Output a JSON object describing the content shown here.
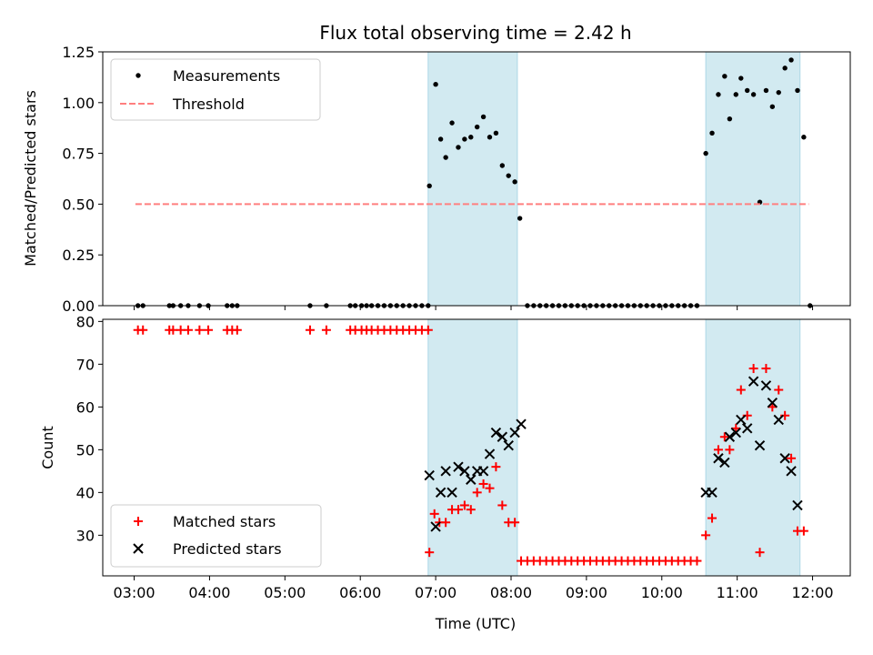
{
  "chart_data": [
    {
      "type": "scatter",
      "title": "Flux total observing time = 2.42 h",
      "xlabel": "",
      "ylabel": "Matched/Predicted stars",
      "xlim": [
        "02:35",
        "12:30"
      ],
      "ylim": [
        0,
        1.25
      ],
      "yticks": [
        "0.00",
        "0.25",
        "0.50",
        "0.75",
        "1.00",
        "1.25"
      ],
      "grid": false,
      "legend_position": "top-left",
      "shaded_intervals": [
        [
          "06:54",
          "08:05"
        ],
        [
          "10:35",
          "11:50"
        ]
      ],
      "shade_color": "#add8e6",
      "series": [
        {
          "name": "Measurements",
          "marker": "dot",
          "color": "#000000",
          "points": [
            [
              "03:03",
              0
            ],
            [
              "03:07",
              0
            ],
            [
              "03:28",
              0
            ],
            [
              "03:31",
              0
            ],
            [
              "03:37",
              0
            ],
            [
              "03:43",
              0
            ],
            [
              "03:52",
              0
            ],
            [
              "03:59",
              0
            ],
            [
              "04:14",
              0
            ],
            [
              "04:18",
              0
            ],
            [
              "04:22",
              0
            ],
            [
              "05:20",
              0
            ],
            [
              "05:33",
              0
            ],
            [
              "05:52",
              0
            ],
            [
              "05:56",
              0
            ],
            [
              "06:01",
              0
            ],
            [
              "06:05",
              0
            ],
            [
              "06:09",
              0
            ],
            [
              "06:14",
              0
            ],
            [
              "06:19",
              0
            ],
            [
              "06:24",
              0
            ],
            [
              "06:29",
              0
            ],
            [
              "06:34",
              0
            ],
            [
              "06:39",
              0
            ],
            [
              "06:44",
              0
            ],
            [
              "06:49",
              0
            ],
            [
              "06:54",
              0
            ],
            [
              "06:55",
              0.59
            ],
            [
              "07:00",
              1.09
            ],
            [
              "07:04",
              0.82
            ],
            [
              "07:08",
              0.73
            ],
            [
              "07:13",
              0.9
            ],
            [
              "07:18",
              0.78
            ],
            [
              "07:23",
              0.82
            ],
            [
              "07:28",
              0.83
            ],
            [
              "07:33",
              0.88
            ],
            [
              "07:38",
              0.93
            ],
            [
              "07:43",
              0.83
            ],
            [
              "07:48",
              0.85
            ],
            [
              "07:53",
              0.69
            ],
            [
              "07:58",
              0.64
            ],
            [
              "08:03",
              0.61
            ],
            [
              "08:07",
              0.43
            ],
            [
              "08:13",
              0
            ],
            [
              "08:18",
              0
            ],
            [
              "08:23",
              0
            ],
            [
              "08:28",
              0
            ],
            [
              "08:33",
              0
            ],
            [
              "08:38",
              0
            ],
            [
              "08:43",
              0
            ],
            [
              "08:48",
              0
            ],
            [
              "08:53",
              0
            ],
            [
              "08:58",
              0
            ],
            [
              "09:03",
              0
            ],
            [
              "09:08",
              0
            ],
            [
              "09:13",
              0
            ],
            [
              "09:18",
              0
            ],
            [
              "09:23",
              0
            ],
            [
              "09:28",
              0
            ],
            [
              "09:33",
              0
            ],
            [
              "09:38",
              0
            ],
            [
              "09:43",
              0
            ],
            [
              "09:48",
              0
            ],
            [
              "09:53",
              0
            ],
            [
              "09:58",
              0
            ],
            [
              "10:03",
              0
            ],
            [
              "10:08",
              0
            ],
            [
              "10:13",
              0
            ],
            [
              "10:18",
              0
            ],
            [
              "10:23",
              0
            ],
            [
              "10:28",
              0
            ],
            [
              "10:35",
              0.75
            ],
            [
              "10:40",
              0.85
            ],
            [
              "10:45",
              1.04
            ],
            [
              "10:50",
              1.13
            ],
            [
              "10:54",
              0.92
            ],
            [
              "10:59",
              1.04
            ],
            [
              "11:03",
              1.12
            ],
            [
              "11:08",
              1.06
            ],
            [
              "11:13",
              1.04
            ],
            [
              "11:18",
              0.51
            ],
            [
              "11:23",
              1.06
            ],
            [
              "11:28",
              0.98
            ],
            [
              "11:33",
              1.05
            ],
            [
              "11:38",
              1.17
            ],
            [
              "11:43",
              1.21
            ],
            [
              "11:48",
              1.06
            ],
            [
              "11:53",
              0.83
            ],
            [
              "11:58",
              0
            ]
          ]
        },
        {
          "name": "Threshold",
          "marker": "dashed-line",
          "color": "#ff7f7f",
          "points": [
            [
              "03:01",
              0.5
            ],
            [
              "11:57",
              0.5
            ]
          ]
        }
      ]
    },
    {
      "type": "scatter",
      "title": "",
      "xlabel": "Time (UTC)",
      "ylabel": "Count",
      "xlim": [
        "02:35",
        "12:30"
      ],
      "ylim": [
        20.5,
        80.5
      ],
      "yticks": [
        "30",
        "40",
        "50",
        "60",
        "70",
        "80"
      ],
      "xticks": [
        "03:00",
        "04:00",
        "05:00",
        "06:00",
        "07:00",
        "08:00",
        "09:00",
        "10:00",
        "11:00",
        "12:00"
      ],
      "grid": false,
      "legend_position": "bottom-left",
      "shaded_intervals": [
        [
          "06:54",
          "08:05"
        ],
        [
          "10:35",
          "11:50"
        ]
      ],
      "shade_color": "#add8e6",
      "series": [
        {
          "name": "Matched stars",
          "marker": "plus",
          "color": "#ff0000",
          "points": [
            [
              "03:03",
              78
            ],
            [
              "03:07",
              78
            ],
            [
              "03:28",
              78
            ],
            [
              "03:31",
              78
            ],
            [
              "03:37",
              78
            ],
            [
              "03:43",
              78
            ],
            [
              "03:52",
              78
            ],
            [
              "03:59",
              78
            ],
            [
              "04:14",
              78
            ],
            [
              "04:18",
              78
            ],
            [
              "04:22",
              78
            ],
            [
              "05:20",
              78
            ],
            [
              "05:33",
              78
            ],
            [
              "05:52",
              78
            ],
            [
              "05:56",
              78
            ],
            [
              "06:01",
              78
            ],
            [
              "06:05",
              78
            ],
            [
              "06:09",
              78
            ],
            [
              "06:14",
              78
            ],
            [
              "06:19",
              78
            ],
            [
              "06:24",
              78
            ],
            [
              "06:29",
              78
            ],
            [
              "06:34",
              78
            ],
            [
              "06:39",
              78
            ],
            [
              "06:44",
              78
            ],
            [
              "06:49",
              78
            ],
            [
              "06:54",
              78
            ],
            [
              "06:55",
              26
            ],
            [
              "06:59",
              35
            ],
            [
              "07:03",
              33
            ],
            [
              "07:08",
              33
            ],
            [
              "07:13",
              36
            ],
            [
              "07:18",
              36
            ],
            [
              "07:23",
              37
            ],
            [
              "07:28",
              36
            ],
            [
              "07:33",
              40
            ],
            [
              "07:38",
              42
            ],
            [
              "07:43",
              41
            ],
            [
              "07:48",
              46
            ],
            [
              "07:53",
              37
            ],
            [
              "07:58",
              33
            ],
            [
              "08:03",
              33
            ],
            [
              "08:08",
              24
            ],
            [
              "08:13",
              24
            ],
            [
              "08:18",
              24
            ],
            [
              "08:23",
              24
            ],
            [
              "08:28",
              24
            ],
            [
              "08:33",
              24
            ],
            [
              "08:38",
              24
            ],
            [
              "08:43",
              24
            ],
            [
              "08:48",
              24
            ],
            [
              "08:53",
              24
            ],
            [
              "08:58",
              24
            ],
            [
              "09:03",
              24
            ],
            [
              "09:08",
              24
            ],
            [
              "09:13",
              24
            ],
            [
              "09:18",
              24
            ],
            [
              "09:23",
              24
            ],
            [
              "09:28",
              24
            ],
            [
              "09:33",
              24
            ],
            [
              "09:38",
              24
            ],
            [
              "09:43",
              24
            ],
            [
              "09:48",
              24
            ],
            [
              "09:53",
              24
            ],
            [
              "09:58",
              24
            ],
            [
              "10:03",
              24
            ],
            [
              "10:08",
              24
            ],
            [
              "10:13",
              24
            ],
            [
              "10:18",
              24
            ],
            [
              "10:23",
              24
            ],
            [
              "10:28",
              24
            ],
            [
              "10:35",
              30
            ],
            [
              "10:40",
              34
            ],
            [
              "10:45",
              50
            ],
            [
              "10:50",
              53
            ],
            [
              "10:54",
              50
            ],
            [
              "10:59",
              55
            ],
            [
              "11:03",
              64
            ],
            [
              "11:08",
              58
            ],
            [
              "11:13",
              69
            ],
            [
              "11:18",
              26
            ],
            [
              "11:23",
              69
            ],
            [
              "11:28",
              60
            ],
            [
              "11:33",
              64
            ],
            [
              "11:38",
              58
            ],
            [
              "11:43",
              48
            ],
            [
              "11:48",
              31
            ],
            [
              "11:53",
              31
            ]
          ]
        },
        {
          "name": "Predicted stars",
          "marker": "x",
          "color": "#000000",
          "points": [
            [
              "06:55",
              44
            ],
            [
              "07:00",
              32
            ],
            [
              "07:04",
              40
            ],
            [
              "07:08",
              45
            ],
            [
              "07:13",
              40
            ],
            [
              "07:18",
              46
            ],
            [
              "07:23",
              45
            ],
            [
              "07:28",
              43
            ],
            [
              "07:33",
              45
            ],
            [
              "07:38",
              45
            ],
            [
              "07:43",
              49
            ],
            [
              "07:48",
              54
            ],
            [
              "07:53",
              53
            ],
            [
              "07:58",
              51
            ],
            [
              "08:03",
              54
            ],
            [
              "08:08",
              56
            ],
            [
              "10:35",
              40
            ],
            [
              "10:40",
              40
            ],
            [
              "10:45",
              48
            ],
            [
              "10:50",
              47
            ],
            [
              "10:54",
              53
            ],
            [
              "10:59",
              54
            ],
            [
              "11:03",
              57
            ],
            [
              "11:08",
              55
            ],
            [
              "11:13",
              66
            ],
            [
              "11:18",
              51
            ],
            [
              "11:23",
              65
            ],
            [
              "11:28",
              61
            ],
            [
              "11:33",
              57
            ],
            [
              "11:38",
              48
            ],
            [
              "11:43",
              45
            ],
            [
              "11:48",
              37
            ]
          ]
        }
      ]
    }
  ]
}
